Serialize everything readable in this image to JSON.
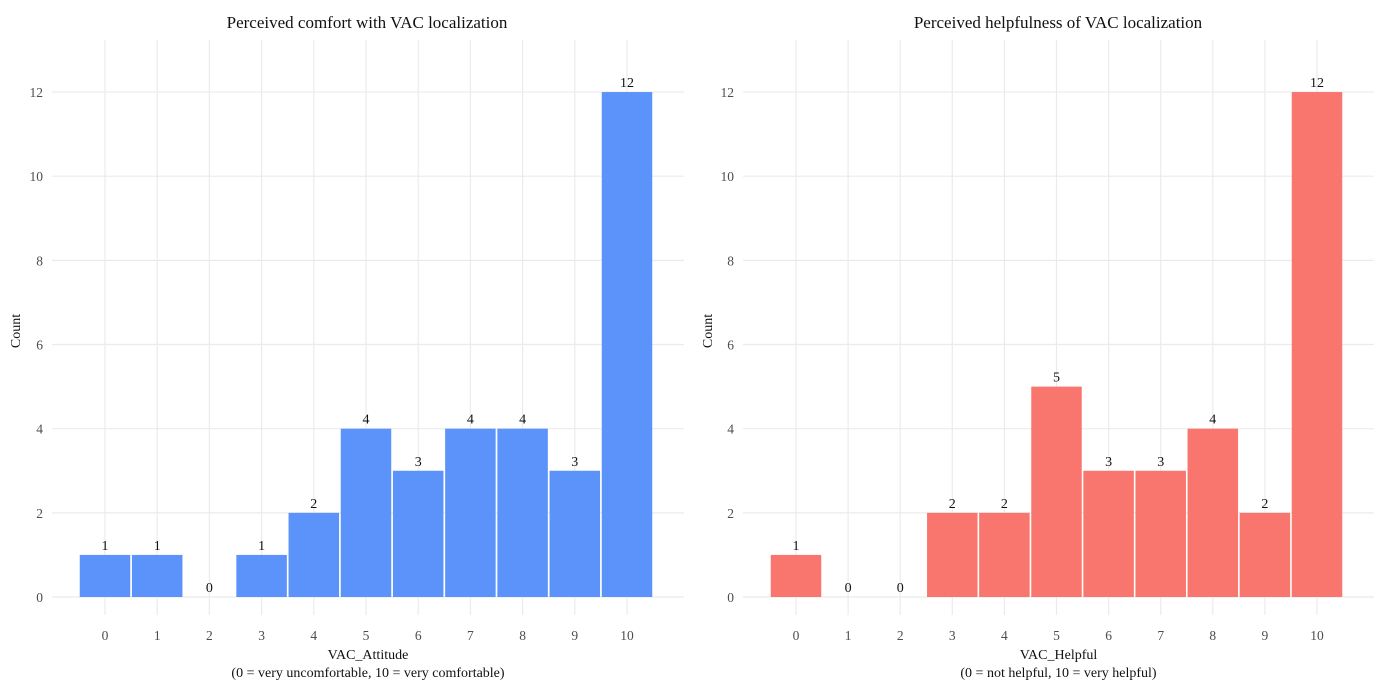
{
  "chart_data": [
    {
      "type": "bar",
      "title": "Perceived comfort with VAC localization",
      "xlabel": "VAC_Attitude",
      "xlabel_note": "(0 = very uncomfortable, 10 = very comfortable)",
      "ylabel": "Count",
      "categories": [
        "0",
        "1",
        "2",
        "3",
        "4",
        "5",
        "6",
        "7",
        "8",
        "9",
        "10"
      ],
      "values": [
        1,
        1,
        0,
        1,
        2,
        4,
        3,
        4,
        4,
        3,
        12
      ],
      "yticks": [
        0,
        2,
        4,
        6,
        8,
        10,
        12
      ],
      "ylim": [
        0,
        13.2
      ],
      "color": "#5b93fb",
      "grid": true,
      "legend": "none"
    },
    {
      "type": "bar",
      "title": "Perceived helpfulness of VAC localization",
      "xlabel": "VAC_Helpful",
      "xlabel_note": "(0 = not helpful, 10 = very helpful)",
      "ylabel": "Count",
      "categories": [
        "0",
        "1",
        "2",
        "3",
        "4",
        "5",
        "6",
        "7",
        "8",
        "9",
        "10"
      ],
      "values": [
        1,
        0,
        0,
        2,
        2,
        5,
        3,
        3,
        4,
        2,
        12
      ],
      "yticks": [
        0,
        2,
        4,
        6,
        8,
        10,
        12
      ],
      "ylim": [
        0,
        13.2
      ],
      "color": "#f8766d",
      "grid": true,
      "legend": "none"
    }
  ]
}
